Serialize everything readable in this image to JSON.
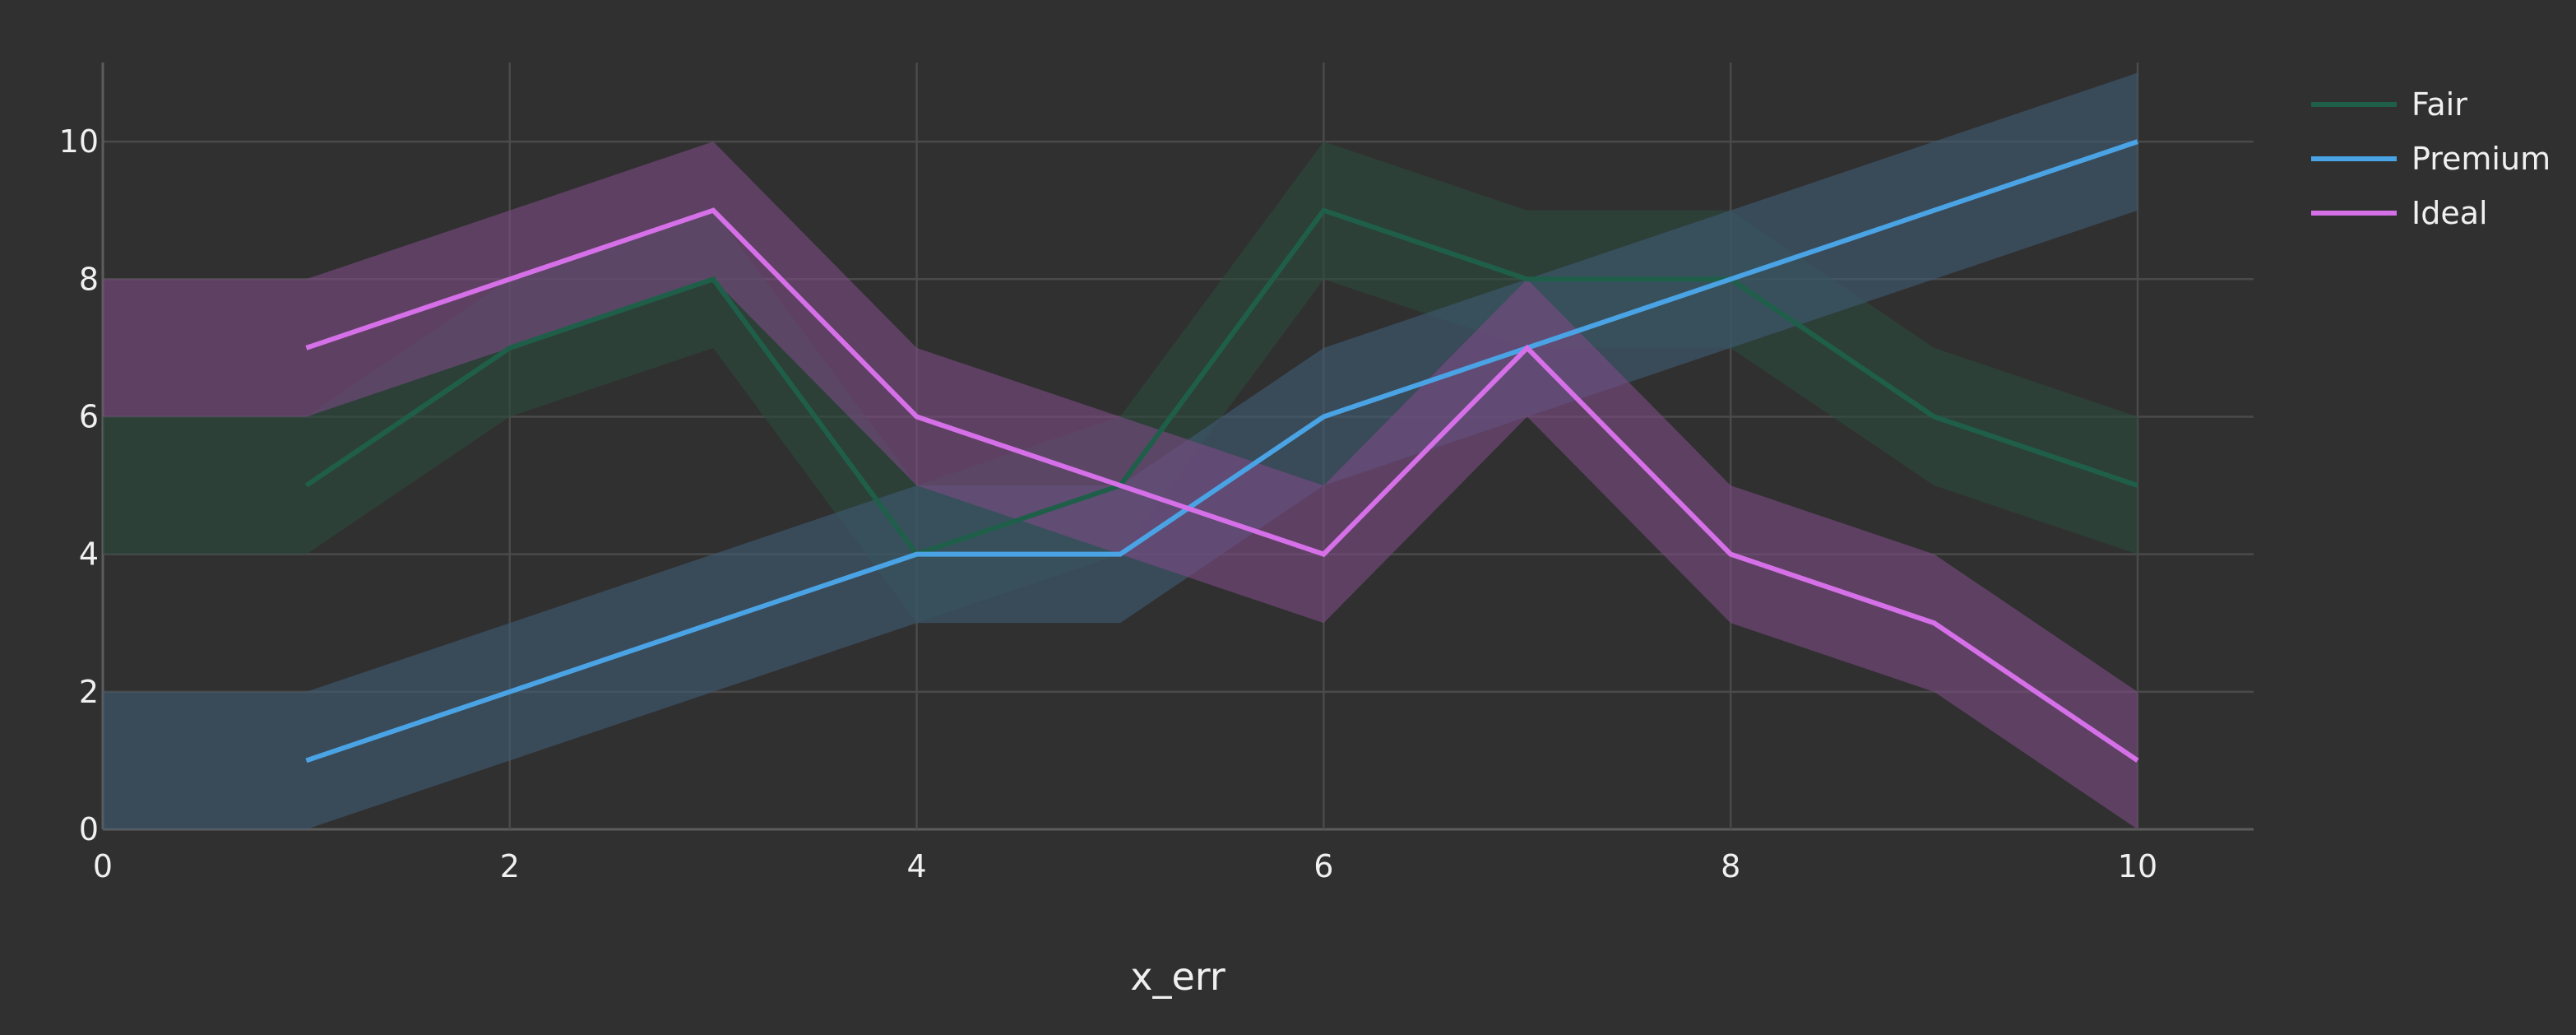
{
  "chart_data": {
    "type": "line",
    "title": "",
    "xlabel": "x_err",
    "ylabel": "",
    "xlim": [
      0,
      10.57
    ],
    "ylim": [
      0,
      11.15
    ],
    "x_ticks": [
      0,
      2,
      4,
      6,
      8,
      10
    ],
    "y_ticks": [
      0,
      2,
      4,
      6,
      8,
      10
    ],
    "grid": true,
    "legend_position": "top-right",
    "series": [
      {
        "name": "Fair",
        "color": "#1f5f4a",
        "band_color": "#2a4a3e",
        "x": [
          1,
          2,
          3,
          4,
          5,
          6,
          7,
          8,
          9,
          10
        ],
        "values": [
          5,
          7,
          8,
          4,
          5,
          9,
          8,
          8,
          6,
          5
        ],
        "band_start": {
          "x": 0,
          "upper": 6,
          "lower": 4
        },
        "err": [
          1,
          1,
          1,
          1,
          1,
          1,
          1,
          1,
          1,
          1
        ]
      },
      {
        "name": "Premium",
        "color": "#4aa3e4",
        "band_color": "#3f5a72",
        "x": [
          1,
          2,
          3,
          4,
          5,
          6,
          7,
          8,
          9,
          10
        ],
        "values": [
          1,
          2,
          3,
          4,
          4,
          6,
          7,
          8,
          9,
          10
        ],
        "band_start": {
          "x": 0,
          "upper": 2,
          "lower": 0
        },
        "err": [
          1,
          1,
          1,
          1,
          1,
          1,
          1,
          1,
          1,
          1
        ]
      },
      {
        "name": "Ideal",
        "color": "#d670e8",
        "band_color": "#7a4a82",
        "x": [
          1,
          2,
          3,
          4,
          5,
          6,
          7,
          8,
          9,
          10
        ],
        "values": [
          7,
          8,
          9,
          6,
          5,
          4,
          7,
          4,
          3,
          1
        ],
        "band_start": {
          "x": 0,
          "upper": 8,
          "lower": 6
        },
        "err": [
          1,
          1,
          1,
          1,
          1,
          1,
          1,
          1,
          1,
          1
        ]
      }
    ]
  }
}
